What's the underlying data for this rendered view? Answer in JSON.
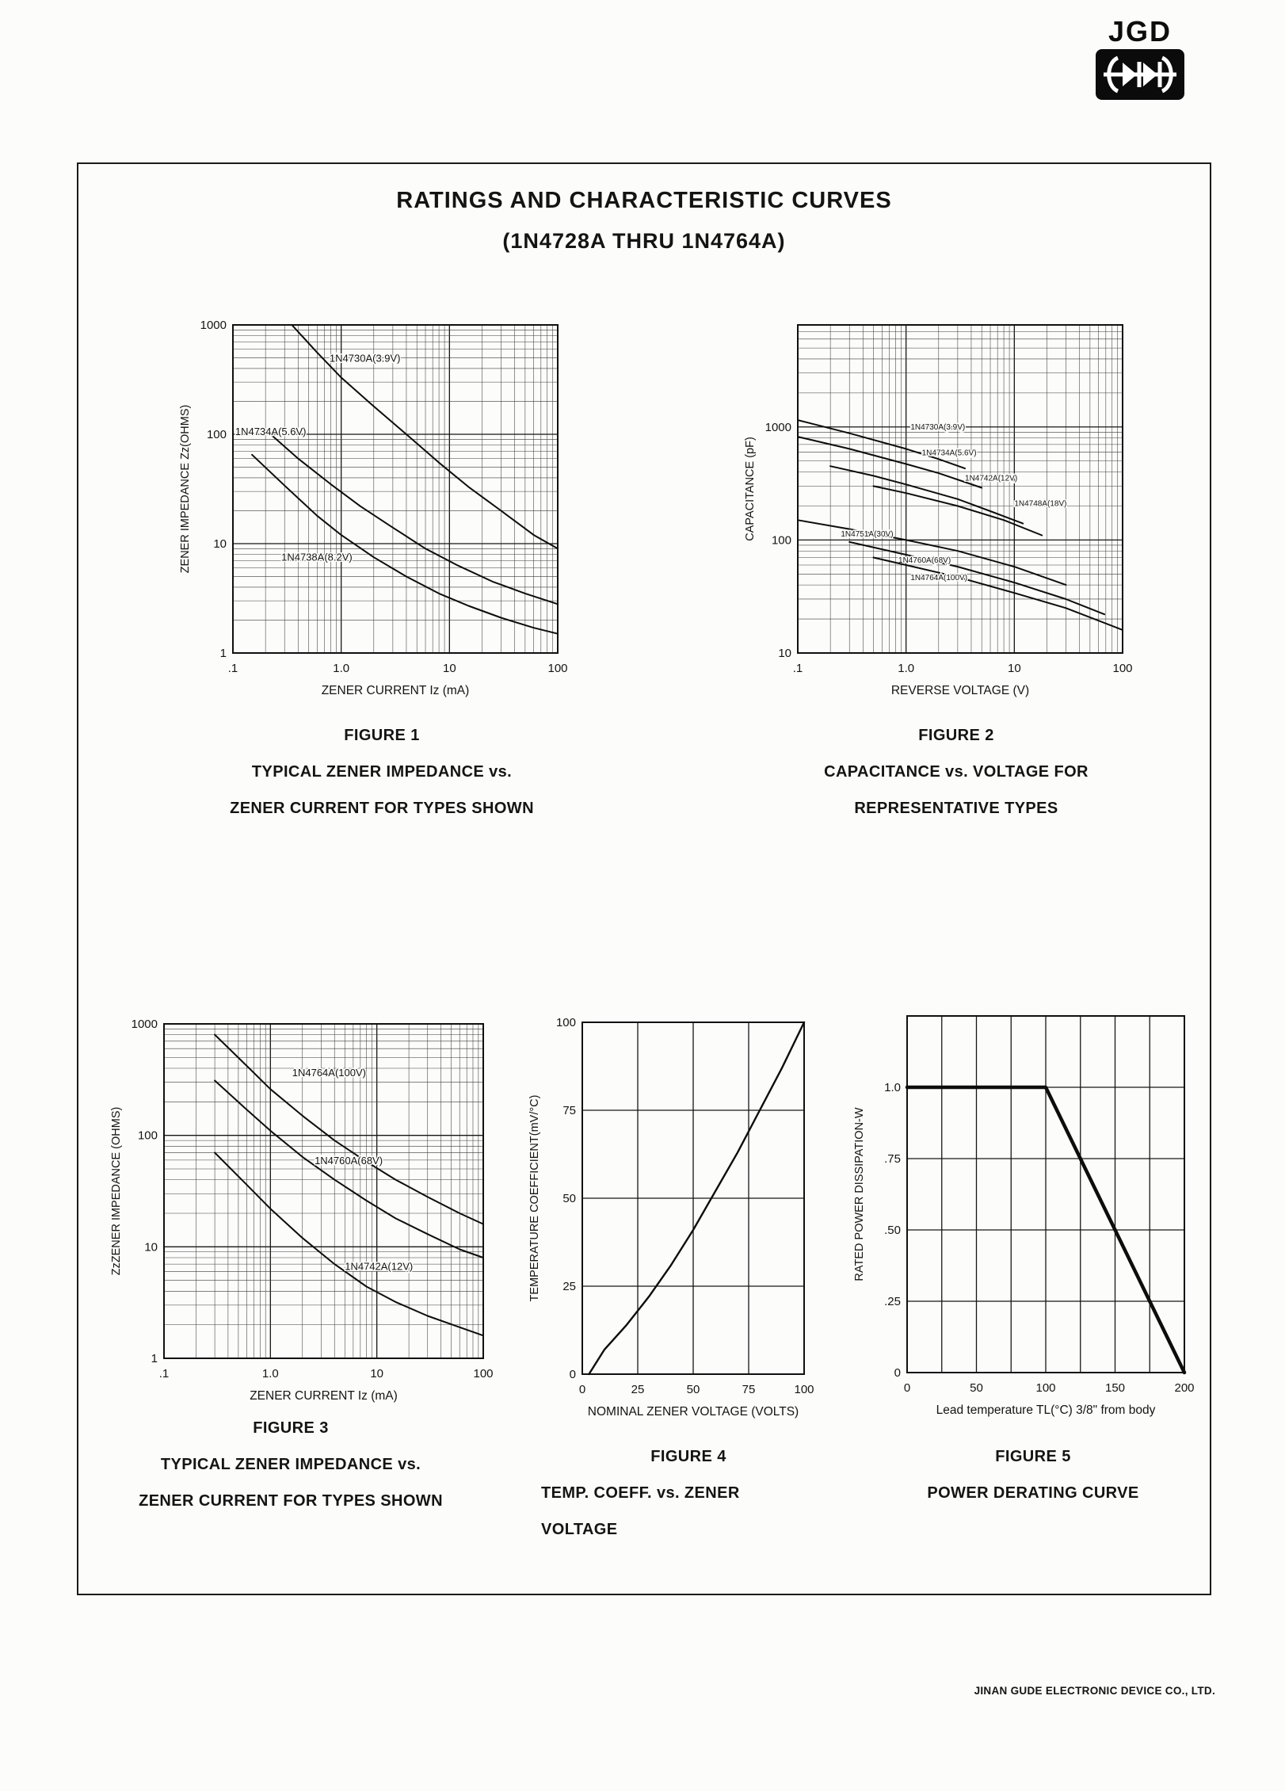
{
  "logo": {
    "text": "JGD"
  },
  "page": {
    "title_line1": "RATINGS AND CHARACTERISTIC CURVES",
    "title_line2": "(1N4728A THRU 1N4764A)",
    "footer": "JINAN GUDE ELECTRONIC DEVICE CO., LTD."
  },
  "chart_data": [
    {
      "figure_label": "FIGURE 1",
      "caption_lines": [
        "TYPICAL ZENER IMPEDANCE vs.",
        "ZENER CURRENT FOR TYPES SHOWN"
      ],
      "type": "line",
      "xscale": "log",
      "yscale": "log",
      "xlim": [
        0.1,
        100
      ],
      "ylim": [
        1,
        1000
      ],
      "xlabel": "ZENER CURRENT Iz (mA)",
      "ylabel": "ZENER IMPEDANCE Zz(OHMS)",
      "xticks": [
        {
          "v": 0.1,
          "label": ".1"
        },
        {
          "v": 1,
          "label": "1.0"
        },
        {
          "v": 10,
          "label": "10"
        },
        {
          "v": 100,
          "label": "100"
        }
      ],
      "yticks": [
        {
          "v": 1,
          "label": "1"
        },
        {
          "v": 10,
          "label": "10"
        },
        {
          "v": 100,
          "label": "100"
        },
        {
          "v": 1000,
          "label": "1000"
        }
      ],
      "label_size": 13,
      "series": [
        {
          "name": "1N4730A(3.9V)",
          "label_at": [
            0.78,
            460
          ],
          "points": [
            [
              0.35,
              1000
            ],
            [
              0.6,
              560
            ],
            [
              1,
              330
            ],
            [
              2,
              180
            ],
            [
              4,
              100
            ],
            [
              8,
              55
            ],
            [
              15,
              33
            ],
            [
              30,
              20
            ],
            [
              60,
              12
            ],
            [
              100,
              9
            ]
          ]
        },
        {
          "name": "1N4734A(5.6V)",
          "label_at": [
            0.105,
            98
          ],
          "points": [
            [
              0.2,
              110
            ],
            [
              0.4,
              60
            ],
            [
              0.8,
              35
            ],
            [
              1.5,
              22
            ],
            [
              3,
              14
            ],
            [
              6,
              9
            ],
            [
              12,
              6.3
            ],
            [
              25,
              4.5
            ],
            [
              50,
              3.5
            ],
            [
              100,
              2.8
            ]
          ]
        },
        {
          "name": "1N4738A(8.2V)",
          "label_at": [
            0.28,
            7
          ],
          "points": [
            [
              0.15,
              65
            ],
            [
              0.3,
              34
            ],
            [
              0.6,
              18
            ],
            [
              1,
              12
            ],
            [
              2,
              7.5
            ],
            [
              4,
              5
            ],
            [
              8,
              3.5
            ],
            [
              15,
              2.7
            ],
            [
              30,
              2.1
            ],
            [
              60,
              1.7
            ],
            [
              100,
              1.5
            ]
          ]
        }
      ]
    },
    {
      "figure_label": "FIGURE 2",
      "caption_lines": [
        "CAPACITANCE vs. VOLTAGE FOR",
        "REPRESENTATIVE TYPES"
      ],
      "type": "line",
      "xscale": "log",
      "yscale": "log",
      "xlim": [
        0.1,
        100
      ],
      "ylim": [
        10,
        8000
      ],
      "xlabel": "REVERSE VOLTAGE (V)",
      "ylabel": "CAPACITANCE (pF)",
      "xticks": [
        {
          "v": 0.1,
          "label": ".1"
        },
        {
          "v": 1,
          "label": "1.0"
        },
        {
          "v": 10,
          "label": "10"
        },
        {
          "v": 100,
          "label": "100"
        }
      ],
      "yticks": [
        {
          "v": 10,
          "label": "10"
        },
        {
          "v": 100,
          "label": "100"
        },
        {
          "v": 1000,
          "label": "1000"
        }
      ],
      "label_size": 10,
      "series": [
        {
          "name": "1N4730A(3.9V)",
          "label_at": [
            1.1,
            950
          ],
          "points": [
            [
              0.1,
              1150
            ],
            [
              0.3,
              880
            ],
            [
              1,
              640
            ],
            [
              2,
              520
            ],
            [
              3.5,
              430
            ]
          ]
        },
        {
          "name": "1N4734A(5.6V)",
          "label_at": [
            1.4,
            560
          ],
          "points": [
            [
              0.1,
              820
            ],
            [
              0.3,
              640
            ],
            [
              1,
              470
            ],
            [
              2,
              390
            ],
            [
              5,
              290
            ]
          ]
        },
        {
          "name": "1N4742A(12V)",
          "label_at": [
            3.5,
            335
          ],
          "points": [
            [
              0.2,
              450
            ],
            [
              0.5,
              370
            ],
            [
              1,
              310
            ],
            [
              3,
              230
            ],
            [
              6,
              180
            ],
            [
              12,
              140
            ]
          ]
        },
        {
          "name": "1N4748A(18V)",
          "label_at": [
            10,
            200
          ],
          "points": [
            [
              0.5,
              300
            ],
            [
              1,
              260
            ],
            [
              3,
              200
            ],
            [
              8,
              150
            ],
            [
              18,
              110
            ]
          ]
        },
        {
          "name": "1N4751A(30V)",
          "label_at": [
            0.25,
            107
          ],
          "points": [
            [
              0.1,
              150
            ],
            [
              0.3,
              125
            ],
            [
              1,
              100
            ],
            [
              3,
              80
            ],
            [
              10,
              58
            ],
            [
              30,
              40
            ]
          ]
        },
        {
          "name": "1N4760A(68V)",
          "label_at": [
            0.85,
            63
          ],
          "points": [
            [
              0.3,
              96
            ],
            [
              1,
              74
            ],
            [
              3,
              58
            ],
            [
              10,
              42
            ],
            [
              30,
              30
            ],
            [
              68,
              22
            ]
          ]
        },
        {
          "name": "1N4764A(100V)",
          "label_at": [
            1.1,
            44
          ],
          "points": [
            [
              0.5,
              70
            ],
            [
              1,
              60
            ],
            [
              3,
              47
            ],
            [
              10,
              34
            ],
            [
              30,
              25
            ],
            [
              100,
              16
            ]
          ]
        }
      ]
    },
    {
      "figure_label": "FIGURE 3",
      "caption_lines": [
        "TYPICAL ZENER IMPEDANCE vs.",
        "ZENER CURRENT FOR TYPES SHOWN"
      ],
      "type": "line",
      "xscale": "log",
      "yscale": "log",
      "xlim": [
        0.1,
        100
      ],
      "ylim": [
        1,
        1000
      ],
      "xlabel": "ZENER CURRENT Iz (mA)",
      "ylabel": "ZzZENER IMPEDANCE (OHMS)",
      "xticks": [
        {
          "v": 0.1,
          "label": ".1"
        },
        {
          "v": 1,
          "label": "1.0"
        },
        {
          "v": 10,
          "label": "10"
        },
        {
          "v": 100,
          "label": "100"
        }
      ],
      "yticks": [
        {
          "v": 1,
          "label": "1"
        },
        {
          "v": 10,
          "label": "10"
        },
        {
          "v": 100,
          "label": "100"
        },
        {
          "v": 1000,
          "label": "1000"
        }
      ],
      "label_size": 13,
      "series": [
        {
          "name": "1N4764A(100V)",
          "label_at": [
            1.6,
            340
          ],
          "points": [
            [
              0.3,
              800
            ],
            [
              0.6,
              420
            ],
            [
              1,
              260
            ],
            [
              2,
              150
            ],
            [
              4,
              90
            ],
            [
              8,
              58
            ],
            [
              15,
              40
            ],
            [
              30,
              28
            ],
            [
              60,
              20
            ],
            [
              100,
              16
            ]
          ]
        },
        {
          "name": "1N4760A(68V)",
          "label_at": [
            2.6,
            55
          ],
          "points": [
            [
              0.3,
              310
            ],
            [
              0.6,
              170
            ],
            [
              1,
              110
            ],
            [
              2,
              64
            ],
            [
              4,
              40
            ],
            [
              8,
              26
            ],
            [
              15,
              18
            ],
            [
              30,
              13
            ],
            [
              60,
              9.5
            ],
            [
              100,
              8
            ]
          ]
        },
        {
          "name": "1N4742A(12V)",
          "label_at": [
            5,
            6.2
          ],
          "points": [
            [
              0.3,
              70
            ],
            [
              0.6,
              36
            ],
            [
              1,
              22
            ],
            [
              2,
              12
            ],
            [
              4,
              7
            ],
            [
              8,
              4.4
            ],
            [
              15,
              3.2
            ],
            [
              30,
              2.4
            ],
            [
              60,
              1.9
            ],
            [
              100,
              1.6
            ]
          ]
        }
      ]
    },
    {
      "figure_label": "FIGURE 4",
      "caption_lines": [
        "TEMP. COEFF. vs. ZENER",
        "VOLTAGE"
      ],
      "type": "line",
      "xscale": "linear",
      "yscale": "linear",
      "xlim": [
        0,
        100
      ],
      "ylim": [
        0,
        100
      ],
      "xgrid": [
        0,
        25,
        50,
        75,
        100
      ],
      "ygrid": [
        0,
        25,
        50,
        75,
        100
      ],
      "xticks": [
        {
          "v": 0,
          "label": "0"
        },
        {
          "v": 25,
          "label": "25"
        },
        {
          "v": 50,
          "label": "50"
        },
        {
          "v": 75,
          "label": "75"
        },
        {
          "v": 100,
          "label": "100"
        }
      ],
      "yticks": [
        {
          "v": 0,
          "label": "0"
        },
        {
          "v": 25,
          "label": "25"
        },
        {
          "v": 50,
          "label": "50"
        },
        {
          "v": 75,
          "label": "75"
        },
        {
          "v": 100,
          "label": "100"
        }
      ],
      "xlabel": "NOMINAL ZENER VOLTAGE (VOLTS)",
      "ylabel": "TEMPERATURE COEFFICIENT(mV/°C)",
      "line_width": 2.4,
      "series": [
        {
          "points": [
            [
              3,
              0
            ],
            [
              10,
              7
            ],
            [
              20,
              14
            ],
            [
              30,
              22
            ],
            [
              40,
              31
            ],
            [
              50,
              41
            ],
            [
              60,
              52
            ],
            [
              70,
              63
            ],
            [
              80,
              75
            ],
            [
              90,
              87
            ],
            [
              100,
              100
            ]
          ]
        }
      ]
    },
    {
      "figure_label": "FIGURE 5",
      "caption_lines": [
        "POWER DERATING CURVE"
      ],
      "type": "line",
      "xscale": "linear",
      "yscale": "linear",
      "xlim": [
        0,
        200
      ],
      "ylim": [
        0,
        1.25
      ],
      "xgrid": [
        0,
        25,
        50,
        75,
        100,
        125,
        150,
        175,
        200
      ],
      "ygrid": [
        0,
        0.25,
        0.5,
        0.75,
        1,
        1.25
      ],
      "xticks": [
        {
          "v": 0,
          "label": "0"
        },
        {
          "v": 50,
          "label": "50"
        },
        {
          "v": 100,
          "label": "100"
        },
        {
          "v": 150,
          "label": "150"
        },
        {
          "v": 200,
          "label": "200"
        }
      ],
      "yticks": [
        {
          "v": 0,
          "label": "0"
        },
        {
          "v": 0.25,
          "label": ".25"
        },
        {
          "v": 0.5,
          "label": ".50"
        },
        {
          "v": 0.75,
          "label": ".75"
        },
        {
          "v": 1,
          "label": "1.0"
        }
      ],
      "xlabel": "Lead temperature TL(°C) 3/8\" from body",
      "ylabel": "RATED POWER DISSIPATION-W",
      "line_width": 4.5,
      "series": [
        {
          "points": [
            [
              0,
              1
            ],
            [
              100,
              1
            ],
            [
              200,
              0
            ]
          ]
        }
      ]
    }
  ]
}
